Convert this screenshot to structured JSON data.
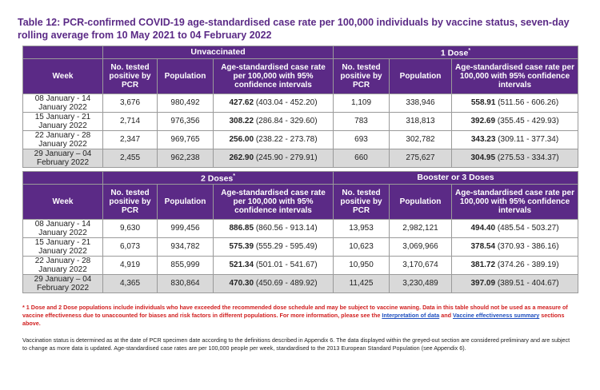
{
  "title": "Table 12: PCR-confirmed COVID-19 age-standardised case rate per 100,000 individuals by vaccine status, seven-day rolling average from 10 May 2021 to 04 February 2022",
  "headers": {
    "week": "Week",
    "tested": "No. tested positive by PCR",
    "population": "Population",
    "rate": "Age-standardised case rate per 100,000 with 95% confidence intervals"
  },
  "table_top": {
    "group_left": "Unvaccinated",
    "group_right": "1 Dose",
    "group_right_sup": "*",
    "rows": [
      {
        "week": "08 January - 14 January 2022",
        "l_tested": "3,676",
        "l_pop": "980,492",
        "l_rate": "427.62",
        "l_ci": "(403.04 - 452.20)",
        "r_tested": "1,109",
        "r_pop": "338,946",
        "r_rate": "558.91",
        "r_ci": "(511.56 - 606.26)"
      },
      {
        "week": "15 January - 21 January 2022",
        "l_tested": "2,714",
        "l_pop": "976,356",
        "l_rate": "308.22",
        "l_ci": "(286.84 - 329.60)",
        "r_tested": "783",
        "r_pop": "318,813",
        "r_rate": "392.69",
        "r_ci": "(355.45 - 429.93)"
      },
      {
        "week": "22 January - 28 January 2022",
        "l_tested": "2,347",
        "l_pop": "969,765",
        "l_rate": "256.00",
        "l_ci": "(238.22 - 273.78)",
        "r_tested": "693",
        "r_pop": "302,782",
        "r_rate": "343.23",
        "r_ci": "(309.11 - 377.34)"
      },
      {
        "week": "29 January – 04 February 2022",
        "l_tested": "2,455",
        "l_pop": "962,238",
        "l_rate": "262.90",
        "l_ci": "(245.90 - 279.91)",
        "r_tested": "660",
        "r_pop": "275,627",
        "r_rate": "304.95",
        "r_ci": "(275.53 - 334.37)"
      }
    ]
  },
  "table_bottom": {
    "group_left": "2 Doses",
    "group_left_sup": "*",
    "group_right": "Booster or 3 Doses",
    "rows": [
      {
        "week": "08 January - 14 January 2022",
        "l_tested": "9,630",
        "l_pop": "999,456",
        "l_rate": "886.85",
        "l_ci": "(860.56 - 913.14)",
        "r_tested": "13,953",
        "r_pop": "2,982,121",
        "r_rate": "494.40",
        "r_ci": "(485.54 - 503.27)"
      },
      {
        "week": "15 January - 21 January 2022",
        "l_tested": "6,073",
        "l_pop": "934,782",
        "l_rate": "575.39",
        "l_ci": "(555.29 - 595.49)",
        "r_tested": "10,623",
        "r_pop": "3,069,966",
        "r_rate": "378.54",
        "r_ci": "(370.93 - 386.16)"
      },
      {
        "week": "22 January - 28 January 2022",
        "l_tested": "4,919",
        "l_pop": "855,999",
        "l_rate": "521.34",
        "l_ci": "(501.01 - 541.67)",
        "r_tested": "10,950",
        "r_pop": "3,170,674",
        "r_rate": "381.72",
        "r_ci": "(374.26 - 389.19)"
      },
      {
        "week": "29 January – 04 February 2022",
        "l_tested": "4,365",
        "l_pop": "830,864",
        "l_rate": "470.30",
        "l_ci": "(450.69 - 489.92)",
        "r_tested": "11,425",
        "r_pop": "3,230,489",
        "r_rate": "397.09",
        "r_ci": "(389.51 - 404.67)"
      }
    ]
  },
  "footnote1": {
    "text": "* 1 Dose and 2 Dose populations include individuals who have exceeded the recommended dose schedule and may be subject to vaccine waning. Data in this table should not be used as a measure of vaccine effectiveness due to unaccounted for biases and risk factors in different populations. For more information, please see the ",
    "link1": "Interpretation of data",
    "and": " and ",
    "link2": "Vaccine effectiveness summary",
    "tail": " sections above."
  },
  "footnote2": "Vaccination status is determined as at the date of PCR specimen date according to the definitions described in Appendix 6. The data displayed within the greyed-out section are considered preliminary and are subject to change as more data is updated. Age-standardised case rates are per 100,000 people per week, standardised to the 2013 European Standard Population (see Appendix 6)."
}
